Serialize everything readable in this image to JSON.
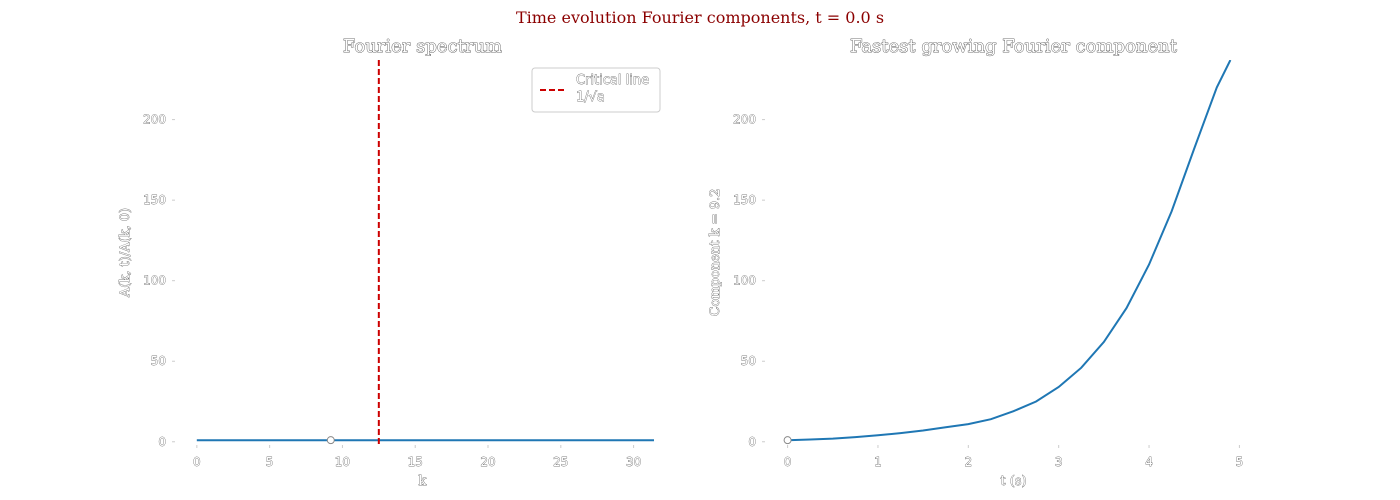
{
  "suptitle": "Time evolution Fourier components, t = 0.0 s",
  "chart_data": [
    {
      "type": "line",
      "title": "Fourier spectrum",
      "xlabel": "k",
      "ylabel": "A(k, t)/A(k, 0)",
      "xlim": [
        -1.5,
        32.5
      ],
      "ylim": [
        -2,
        237
      ],
      "xticks": [
        0,
        5,
        10,
        15,
        20,
        25,
        30
      ],
      "yticks": [
        0,
        50,
        100,
        150,
        200
      ],
      "grid": false,
      "legend_position": "top-right",
      "series": [
        {
          "name": "",
          "color": "#1f77b4",
          "x": [
            0,
            31.4
          ],
          "y": [
            1,
            1
          ]
        }
      ],
      "vline": {
        "label": "Critical line 1/√a",
        "label_lines": [
          "Critical line",
          "1/√a"
        ],
        "x": 12.5,
        "color": "#cc0000",
        "style": "dashed"
      },
      "marker": {
        "x": 9.2,
        "y": 1
      }
    },
    {
      "type": "line",
      "title": "Fastest growing Fourier component",
      "xlabel": "t (s)",
      "ylabel": "Component k = 9.2",
      "xlim": [
        -0.25,
        5.25
      ],
      "ylim": [
        -2,
        237
      ],
      "xticks": [
        0,
        1,
        2,
        3,
        4,
        5
      ],
      "yticks": [
        0,
        50,
        100,
        150,
        200
      ],
      "grid": false,
      "series": [
        {
          "name": "",
          "color": "#1f77b4",
          "x": [
            0,
            0.25,
            0.5,
            0.75,
            1,
            1.25,
            1.5,
            1.75,
            2,
            2.25,
            2.5,
            2.75,
            3,
            3.25,
            3.5,
            3.75,
            4,
            4.25,
            4.5,
            4.75,
            4.9
          ],
          "y": [
            1,
            1.4,
            2,
            2.9,
            4,
            5.4,
            7,
            9,
            11,
            14,
            19,
            25,
            34,
            46,
            62,
            83,
            110,
            143,
            182,
            220,
            237
          ]
        }
      ],
      "marker": {
        "x": 0,
        "y": 1
      }
    }
  ]
}
